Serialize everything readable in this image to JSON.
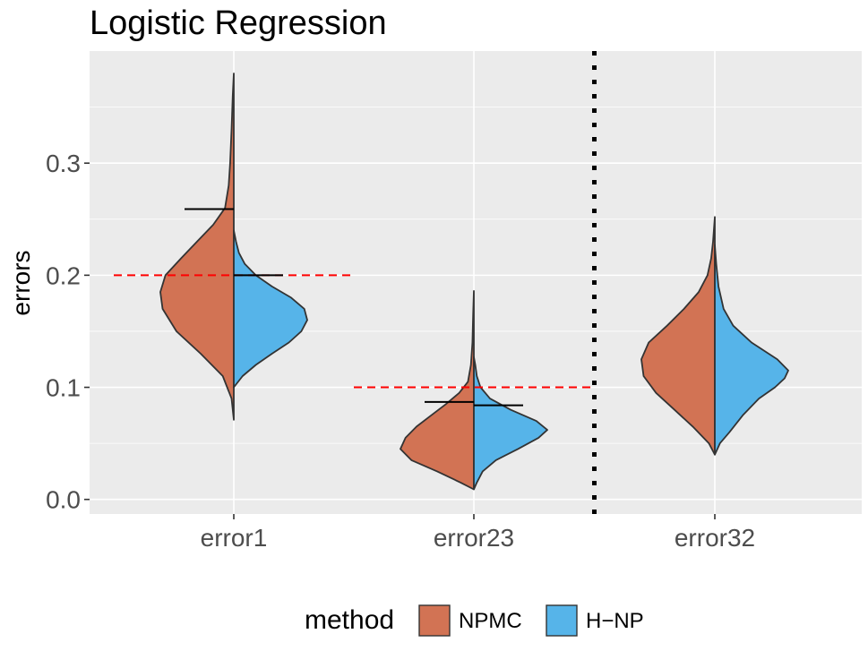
{
  "chart_data": {
    "type": "split-violin",
    "title": "Logistic Regression",
    "xlabel": "",
    "ylabel": "errors",
    "ylim": [
      -0.013,
      0.4
    ],
    "yticks": [
      0.0,
      0.1,
      0.2,
      0.3
    ],
    "ytick_labels": [
      "0.0",
      "0.1",
      "0.2",
      "0.3"
    ],
    "categories": [
      "error1",
      "error23",
      "error32"
    ],
    "legend": {
      "title": "method",
      "position": "bottom",
      "entries": [
        {
          "name": "NPMC",
          "color": "#D27354"
        },
        {
          "name": "H−NP",
          "color": "#56B4E9"
        }
      ]
    },
    "series": [
      {
        "name": "NPMC",
        "side": "left",
        "color": "#D27354",
        "violins": [
          {
            "category": "error1",
            "mean": 0.259,
            "range": [
              0.071,
              0.38
            ],
            "profile": [
              [
                0.071,
                0
              ],
              [
                0.09,
                0.03
              ],
              [
                0.11,
                0.15
              ],
              [
                0.13,
                0.45
              ],
              [
                0.15,
                0.78
              ],
              [
                0.17,
                0.97
              ],
              [
                0.185,
                1.0
              ],
              [
                0.2,
                0.93
              ],
              [
                0.215,
                0.72
              ],
              [
                0.23,
                0.5
              ],
              [
                0.245,
                0.28
              ],
              [
                0.26,
                0.12
              ],
              [
                0.28,
                0.07
              ],
              [
                0.3,
                0.05
              ],
              [
                0.33,
                0.03
              ],
              [
                0.36,
                0.015
              ],
              [
                0.38,
                0
              ]
            ]
          },
          {
            "category": "error23",
            "mean": 0.087,
            "range": [
              0.009,
              0.186
            ],
            "profile": [
              [
                0.009,
                0
              ],
              [
                0.015,
                0.18
              ],
              [
                0.025,
                0.5
              ],
              [
                0.035,
                0.85
              ],
              [
                0.045,
                1.0
              ],
              [
                0.055,
                0.93
              ],
              [
                0.065,
                0.78
              ],
              [
                0.075,
                0.58
              ],
              [
                0.085,
                0.38
              ],
              [
                0.095,
                0.2
              ],
              [
                0.105,
                0.08
              ],
              [
                0.12,
                0.04
              ],
              [
                0.14,
                0.02
              ],
              [
                0.165,
                0.01
              ],
              [
                0.186,
                0
              ]
            ]
          },
          {
            "category": "error32",
            "mean": null,
            "range": [
              0.04,
              0.252
            ],
            "profile": [
              [
                0.04,
                0
              ],
              [
                0.05,
                0.08
              ],
              [
                0.065,
                0.3
              ],
              [
                0.08,
                0.55
              ],
              [
                0.095,
                0.8
              ],
              [
                0.11,
                0.97
              ],
              [
                0.125,
                1.0
              ],
              [
                0.14,
                0.9
              ],
              [
                0.155,
                0.65
              ],
              [
                0.17,
                0.42
              ],
              [
                0.185,
                0.22
              ],
              [
                0.2,
                0.1
              ],
              [
                0.215,
                0.05
              ],
              [
                0.23,
                0.025
              ],
              [
                0.252,
                0
              ]
            ]
          }
        ]
      },
      {
        "name": "H−NP",
        "side": "right",
        "color": "#56B4E9",
        "violins": [
          {
            "category": "error1",
            "mean": 0.2,
            "range": [
              0.1,
              0.24
            ],
            "profile": [
              [
                0.1,
                0
              ],
              [
                0.11,
                0.12
              ],
              [
                0.12,
                0.3
              ],
              [
                0.13,
                0.52
              ],
              [
                0.14,
                0.75
              ],
              [
                0.15,
                0.92
              ],
              [
                0.16,
                1.0
              ],
              [
                0.17,
                0.96
              ],
              [
                0.18,
                0.78
              ],
              [
                0.19,
                0.52
              ],
              [
                0.2,
                0.3
              ],
              [
                0.21,
                0.15
              ],
              [
                0.22,
                0.07
              ],
              [
                0.23,
                0.03
              ],
              [
                0.24,
                0
              ]
            ]
          },
          {
            "category": "error23",
            "mean": 0.084,
            "range": [
              0.009,
              0.127
            ],
            "profile": [
              [
                0.009,
                0
              ],
              [
                0.015,
                0.04
              ],
              [
                0.025,
                0.12
              ],
              [
                0.035,
                0.3
              ],
              [
                0.045,
                0.6
              ],
              [
                0.055,
                0.88
              ],
              [
                0.062,
                1.0
              ],
              [
                0.07,
                0.85
              ],
              [
                0.08,
                0.5
              ],
              [
                0.09,
                0.22
              ],
              [
                0.1,
                0.09
              ],
              [
                0.11,
                0.04
              ],
              [
                0.12,
                0.02
              ],
              [
                0.127,
                0
              ]
            ]
          },
          {
            "category": "error32",
            "mean": null,
            "range": [
              0.04,
              0.227
            ],
            "profile": [
              [
                0.04,
                0
              ],
              [
                0.05,
                0.07
              ],
              [
                0.06,
                0.2
              ],
              [
                0.075,
                0.38
              ],
              [
                0.09,
                0.6
              ],
              [
                0.1,
                0.82
              ],
              [
                0.108,
                0.95
              ],
              [
                0.115,
                1.0
              ],
              [
                0.125,
                0.85
              ],
              [
                0.14,
                0.5
              ],
              [
                0.155,
                0.25
              ],
              [
                0.17,
                0.12
              ],
              [
                0.19,
                0.05
              ],
              [
                0.21,
                0.02
              ],
              [
                0.227,
                0
              ]
            ]
          }
        ]
      }
    ],
    "reference_lines": [
      {
        "y": 0.2,
        "categories": [
          "error1"
        ],
        "style": "dashed",
        "color": "#FF0000"
      },
      {
        "y": 0.1,
        "categories": [
          "error23"
        ],
        "style": "dashed",
        "color": "#FF0000"
      }
    ],
    "separator": {
      "between": [
        "error23",
        "error32"
      ],
      "style": "dotted",
      "color": "#000000"
    },
    "grid": true,
    "panel_background": "#EBEBEB"
  }
}
